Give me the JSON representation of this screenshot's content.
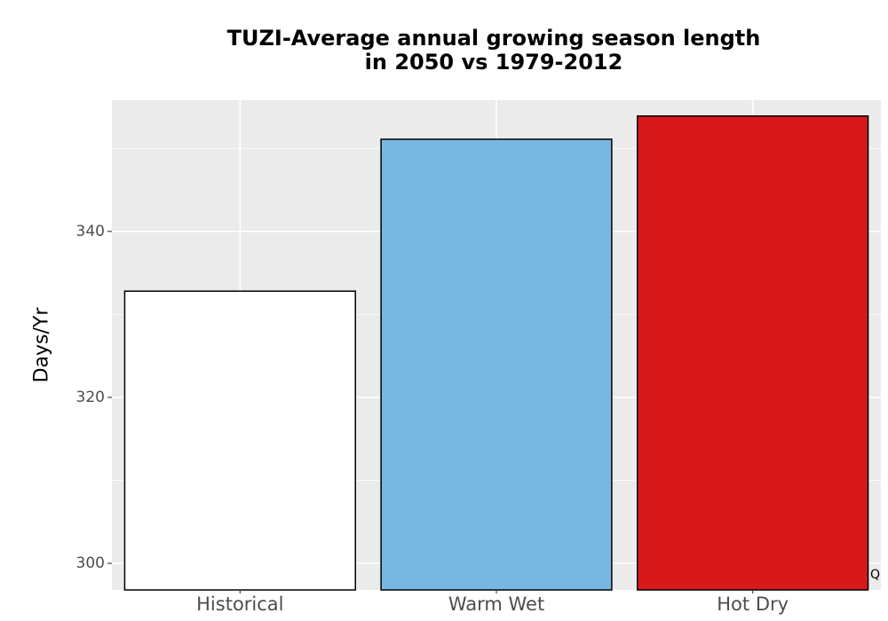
{
  "chart_data": {
    "type": "bar",
    "title_lines": [
      "TUZI-Average annual growing season length",
      "in 2050 vs 1979-2012"
    ],
    "xlabel": "",
    "ylabel": "Days/Yr",
    "categories": [
      "Historical",
      "Warm Wet",
      "Hot Dry"
    ],
    "values": [
      332.8,
      351.1,
      353.9
    ],
    "colors": [
      "#ffffff",
      "#78b7e1",
      "#d7191c"
    ],
    "yticks": [
      300,
      320,
      340
    ],
    "ylim": [
      296.8,
      355.8
    ],
    "grid": true,
    "panel_background": "#ebebeb",
    "grid_color": "#ffffff"
  },
  "annotations": {
    "corner_mark": "Q"
  }
}
